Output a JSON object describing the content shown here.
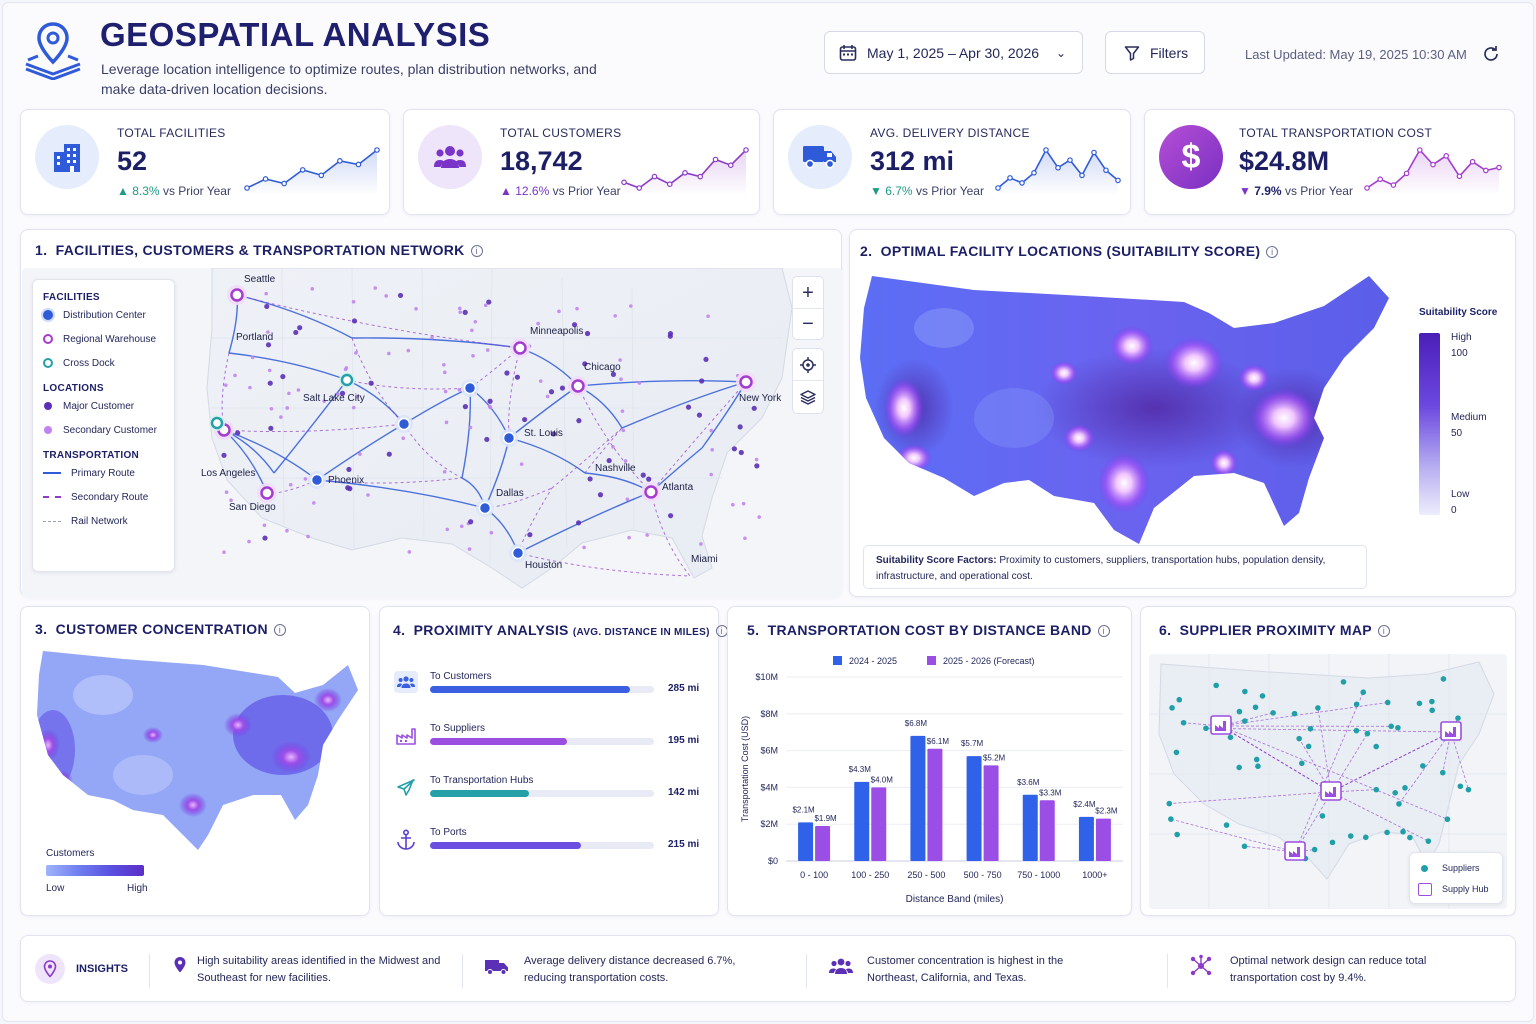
{
  "header": {
    "title": "GEOSPATIAL ANALYSIS",
    "subtitle": "Leverage location intelligence to optimize routes, plan distribution networks, and make data-driven location decisions.",
    "date_range": "May 1, 2025 – Apr 30, 2026",
    "filters_label": "Filters",
    "last_updated": "Last Updated: May 19, 2025 10:30 AM"
  },
  "kpis": [
    {
      "label": "TOTAL FACILITIES",
      "value": "52",
      "change": "8.3%",
      "change_suffix": "vs Prior Year",
      "direction": "up",
      "icon": "building-icon",
      "color": "#2f5bd8",
      "trend": [
        3,
        4,
        3.5,
        5,
        4.4,
        6,
        5.6,
        7.2
      ]
    },
    {
      "label": "TOTAL CUSTOMERS",
      "value": "18,742",
      "change": "12.6%",
      "change_suffix": "vs Prior Year",
      "direction": "up",
      "icon": "users-icon",
      "color": "#8d3bc9",
      "trend": [
        4,
        3.4,
        4.6,
        3.8,
        5,
        4.6,
        6.4,
        5.8,
        7.4
      ]
    },
    {
      "label": "AVG. DELIVERY DISTANCE",
      "value": "312 mi",
      "change": "6.7%",
      "change_suffix": "vs Prior Year",
      "direction": "down",
      "icon": "truck-icon",
      "color": "#2f5bd8",
      "trend": [
        3,
        3.8,
        3.4,
        4.2,
        6,
        4.6,
        5.2,
        4,
        5.8,
        4.4,
        3.6
      ]
    },
    {
      "label": "TOTAL TRANSPORTATION COST",
      "value": "$24.8M",
      "change": "7.9%",
      "change_suffix": "vs Prior Year",
      "direction": "down",
      "icon": "dollar-icon",
      "color": "#a43ccf",
      "trend": [
        3.4,
        4,
        3.6,
        4.4,
        6,
        5,
        5.6,
        4.2,
        5.2,
        4.6,
        4.8
      ]
    }
  ],
  "panel1": {
    "number": "1.",
    "title": "FACILITIES, CUSTOMERS & TRANSPORTATION NETWORK",
    "legend": {
      "facilities_head": "FACILITIES",
      "facilities": [
        "Distribution Center",
        "Regional Warehouse",
        "Cross Dock"
      ],
      "locations_head": "LOCATIONS",
      "locations": [
        "Major Customer",
        "Secondary Customer"
      ],
      "transport_head": "TRANSPORTATION",
      "transport": [
        "Primary Route",
        "Secondary Route",
        "Rail Network"
      ]
    },
    "cities": [
      "Seattle",
      "Portland",
      "Minneapolis",
      "Chicago",
      "New York",
      "Salt Lake City",
      "St. Louis",
      "Los Angeles",
      "Phoenix",
      "Nashville",
      "San Diego",
      "Dallas",
      "Atlanta",
      "Miami",
      "Houston"
    ],
    "zoom_in": "+",
    "zoom_out": "−"
  },
  "panel2": {
    "number": "2.",
    "title": "OPTIMAL FACILITY LOCATIONS (SUITABILITY SCORE)",
    "legend_title": "Suitability Score",
    "legend_high": "High",
    "legend_high_val": "100",
    "legend_mid": "Medium",
    "legend_mid_val": "50",
    "legend_low": "Low",
    "legend_low_val": "0",
    "factors_label": "Suitability Score Factors:",
    "factors_text": "Proximity to customers, suppliers, transportation hubs, population density, infrastructure, and operational cost."
  },
  "panel3": {
    "number": "3.",
    "title": "CUSTOMER CONCENTRATION",
    "legend_title": "Customers",
    "legend_low": "Low",
    "legend_high": "High"
  },
  "panel4": {
    "number": "4.",
    "title": "PROXIMITY ANALYSIS",
    "title_suffix": "(AVG. DISTANCE IN MILES)",
    "rows": [
      {
        "label": "To Customers",
        "value": "285 mi",
        "miles": 285,
        "color": "#3a5fe0",
        "icon": "users-icon"
      },
      {
        "label": "To Suppliers",
        "value": "195 mi",
        "miles": 195,
        "color": "#9a4fe0",
        "icon": "factory-icon"
      },
      {
        "label": "To Transportation Hubs",
        "value": "142 mi",
        "miles": 142,
        "color": "#25a0a8",
        "icon": "plane-icon"
      },
      {
        "label": "To Ports",
        "value": "215 mi",
        "miles": 215,
        "color": "#6b4fe0",
        "icon": "anchor-icon"
      }
    ]
  },
  "panel5": {
    "number": "5.",
    "title": "TRANSPORTATION COST BY DISTANCE BAND"
  },
  "chart_data": {
    "type": "bar",
    "title": "TRANSPORTATION COST BY DISTANCE BAND",
    "xlabel": "Distance Band (miles)",
    "ylabel": "Transportation Cost (USD)",
    "categories": [
      "0 - 100",
      "100 - 250",
      "250 - 500",
      "500 - 750",
      "750 - 1000",
      "1000+"
    ],
    "ylim": [
      0,
      10
    ],
    "yticks": [
      "$0",
      "$2M",
      "$4M",
      "$6M",
      "$8M",
      "$10M"
    ],
    "series": [
      {
        "name": "2024 - 2025",
        "color": "#2f62e8",
        "values": [
          2.1,
          4.3,
          6.8,
          5.7,
          3.6,
          2.4
        ],
        "labels": [
          "$2.1M",
          "$4.3M",
          "$6.8M",
          "$5.7M",
          "$3.6M",
          "$2.4M"
        ]
      },
      {
        "name": "2025 - 2026 (Forecast)",
        "color": "#9b4ee6",
        "values": [
          1.9,
          4.0,
          6.1,
          5.2,
          3.3,
          2.3
        ],
        "labels": [
          "$1.9M",
          "$4.0M",
          "$6.1M",
          "$5.2M",
          "$3.3M",
          "$2.3M"
        ]
      }
    ],
    "grid": true,
    "legend_position": "top"
  },
  "panel6": {
    "number": "6.",
    "title": "SUPPLIER PROXIMITY MAP",
    "legend_suppliers": "Suppliers",
    "legend_hub": "Supply Hub"
  },
  "insights": {
    "label": "INSIGHTS",
    "items": [
      {
        "icon": "pin-icon",
        "text": "High suitability areas identified in the Midwest and Southeast for new facilities."
      },
      {
        "icon": "truck-icon",
        "text": "Average delivery distance decreased 6.7%, reducing transportation costs."
      },
      {
        "icon": "users-icon",
        "text": "Customer concentration is highest in the Northeast, California, and Texas."
      },
      {
        "icon": "network-icon",
        "text": "Optimal network design can reduce total transportation cost by 9.4%."
      }
    ]
  },
  "colors": {
    "navy": "#1c1f66",
    "blue": "#2f62e8",
    "purple": "#9b4ee6",
    "teal": "#25a0a8"
  }
}
